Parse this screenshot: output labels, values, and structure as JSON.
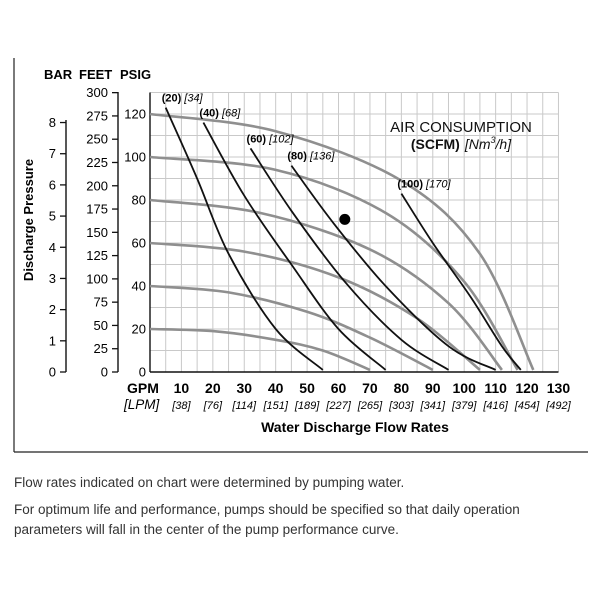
{
  "chart_data": {
    "type": "line",
    "axes": {
      "bar_label": "BAR",
      "feet_label": "FEET",
      "psig_label": "PSIG",
      "y_title": "Discharge Pressure",
      "bar_ticks": [
        "0",
        "1",
        "2",
        "3",
        "4",
        "5",
        "6",
        "7",
        "8"
      ],
      "feet_ticks": [
        "0",
        "25",
        "50",
        "75",
        "100",
        "125",
        "150",
        "175",
        "200",
        "225",
        "250",
        "275",
        "300"
      ],
      "psig_ticks": [
        "0",
        "20",
        "40",
        "60",
        "80",
        "100",
        "120"
      ],
      "gpm_label": "GPM",
      "lpm_label": "[LPM]",
      "x_ticks_gpm": [
        "10",
        "20",
        "30",
        "40",
        "50",
        "60",
        "70",
        "80",
        "90",
        "100",
        "110",
        "120",
        "130"
      ],
      "x_ticks_lpm": [
        "[38]",
        "[76]",
        "[114]",
        "[151]",
        "[189]",
        "[227]",
        "[265]",
        "[303]",
        "[341]",
        "[379]",
        "[416]",
        "[454]",
        "[492]"
      ],
      "x_title": "Water Discharge Flow Rates",
      "xlim": [
        0,
        130
      ],
      "ylim_psig": [
        0,
        130
      ]
    },
    "air_title_1": "AIR CONSUMPTION",
    "air_title_2_bold": "(SCFM)",
    "air_title_2_italic": "[Nm",
    "air_title_2_sup": "3",
    "air_title_2_end": "/h]",
    "pressure_curves": [
      {
        "inlet_psig": 20,
        "points": [
          [
            0,
            20
          ],
          [
            20,
            19
          ],
          [
            40,
            15
          ],
          [
            55,
            10
          ],
          [
            70,
            1
          ]
        ]
      },
      {
        "inlet_psig": 40,
        "points": [
          [
            0,
            40
          ],
          [
            25,
            37
          ],
          [
            50,
            28
          ],
          [
            70,
            16
          ],
          [
            90,
            1
          ]
        ]
      },
      {
        "inlet_psig": 60,
        "points": [
          [
            0,
            60
          ],
          [
            30,
            56
          ],
          [
            60,
            44
          ],
          [
            85,
            25
          ],
          [
            105,
            1
          ]
        ]
      },
      {
        "inlet_psig": 80,
        "points": [
          [
            0,
            80
          ],
          [
            35,
            74
          ],
          [
            70,
            57
          ],
          [
            95,
            32
          ],
          [
            112,
            1
          ]
        ]
      },
      {
        "inlet_psig": 100,
        "points": [
          [
            0,
            100
          ],
          [
            40,
            94
          ],
          [
            75,
            74
          ],
          [
            100,
            42
          ],
          [
            117,
            1
          ]
        ]
      },
      {
        "inlet_psig": 120,
        "points": [
          [
            0,
            120
          ],
          [
            40,
            112
          ],
          [
            80,
            89
          ],
          [
            105,
            55
          ],
          [
            122,
            1
          ]
        ]
      }
    ],
    "air_curves": [
      {
        "scfm": "(20)",
        "nm3h": "[34]",
        "points": [
          [
            5,
            123
          ],
          [
            15,
            90
          ],
          [
            25,
            55
          ],
          [
            40,
            20
          ],
          [
            55,
            1
          ]
        ]
      },
      {
        "scfm": "(40)",
        "nm3h": "[68]",
        "points": [
          [
            17,
            116
          ],
          [
            30,
            82
          ],
          [
            45,
            50
          ],
          [
            60,
            20
          ],
          [
            75,
            1
          ]
        ]
      },
      {
        "scfm": "(60)",
        "nm3h": "[102]",
        "points": [
          [
            32,
            104
          ],
          [
            45,
            75
          ],
          [
            62,
            42
          ],
          [
            80,
            15
          ],
          [
            95,
            1
          ]
        ]
      },
      {
        "scfm": "(80)",
        "nm3h": "[136]",
        "points": [
          [
            45,
            96
          ],
          [
            58,
            70
          ],
          [
            75,
            40
          ],
          [
            95,
            12
          ],
          [
            110,
            1
          ]
        ]
      },
      {
        "scfm": "(100)",
        "nm3h": "[170]",
        "points": [
          [
            80,
            83
          ],
          [
            90,
            60
          ],
          [
            102,
            35
          ],
          [
            112,
            12
          ],
          [
            118,
            1
          ]
        ]
      }
    ],
    "operating_point": {
      "gpm": 62,
      "psig": 71
    }
  },
  "notes": {
    "line1": "Flow rates indicated on chart were determined by pumping water.",
    "line2": "For optimum life and performance, pumps should be specified so that daily operation parameters will fall in the center of the pump performance curve."
  }
}
